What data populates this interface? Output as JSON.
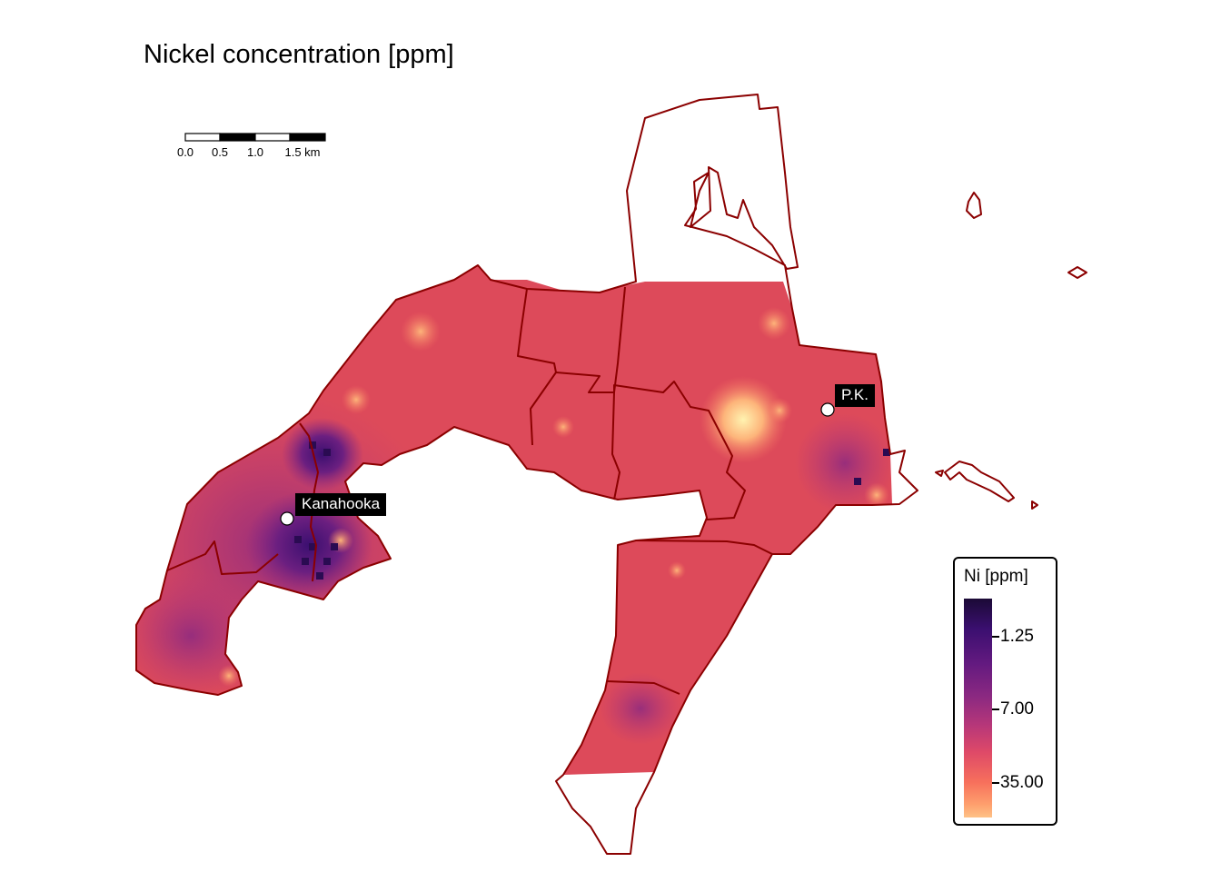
{
  "title": "Nickel concentration [ppm]",
  "scale_bar": {
    "labels": [
      "0.0",
      "0.5",
      "1.0",
      "1.5 km"
    ]
  },
  "places": [
    {
      "name": "Kanahooka"
    },
    {
      "name": "P.K."
    }
  ],
  "legend": {
    "title": "Ni [ppm]",
    "ticks": [
      "1.25",
      "7.00",
      "35.00"
    ],
    "colors": {
      "low": "#fec287",
      "mid": "#de4968",
      "high": "#1b0a36"
    }
  },
  "colors": {
    "boundary": "#8b0000",
    "raster_base": "#dd4a5a",
    "hotspot": "#ffe49a",
    "low_value": "#4a1470"
  }
}
